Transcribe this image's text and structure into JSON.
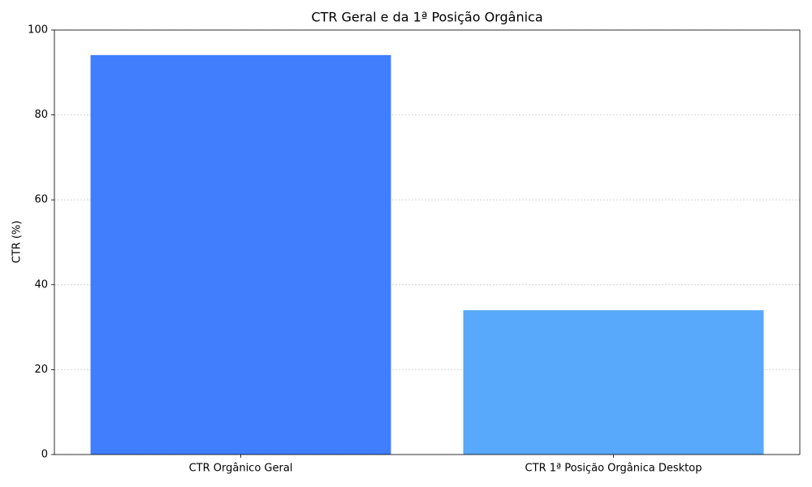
{
  "chart_data": {
    "type": "bar",
    "title": "CTR Geral e da 1ª Posição Orgânica",
    "y_label": "CTR (%)",
    "categories": [
      "CTR Orgânico Geral",
      "CTR 1ª Posição Orgânica Desktop"
    ],
    "values": [
      94.1,
      34.0
    ],
    "colors": [
      "#407efe",
      "#58a8fb"
    ],
    "ylim": [
      0,
      100
    ],
    "yticks": [
      0,
      20,
      40,
      60,
      80,
      100
    ],
    "grid": true
  }
}
